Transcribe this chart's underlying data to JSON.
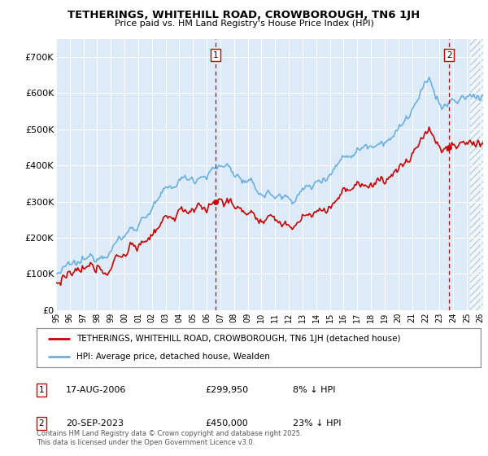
{
  "title": "TETHERINGS, WHITEHILL ROAD, CROWBOROUGH, TN6 1JH",
  "subtitle": "Price paid vs. HM Land Registry's House Price Index (HPI)",
  "ylabel_ticks": [
    "£0",
    "£100K",
    "£200K",
    "£300K",
    "£400K",
    "£500K",
    "£600K",
    "£700K"
  ],
  "ylim": [
    0,
    750000
  ],
  "xlim_start": 1995.0,
  "xlim_end": 2026.2,
  "hpi_color": "#6ab0de",
  "price_color": "#cc0000",
  "sale1_x": 2006.63,
  "sale1_y": 299950,
  "sale2_x": 2023.72,
  "sale2_y": 450000,
  "legend_line1": "TETHERINGS, WHITEHILL ROAD, CROWBOROUGH, TN6 1JH (detached house)",
  "legend_line2": "HPI: Average price, detached house, Wealden",
  "annotation1_date": "17-AUG-2006",
  "annotation1_price": "£299,950",
  "annotation1_pct": "8% ↓ HPI",
  "annotation2_date": "20-SEP-2023",
  "annotation2_price": "£450,000",
  "annotation2_pct": "23% ↓ HPI",
  "footer": "Contains HM Land Registry data © Crown copyright and database right 2025.\nThis data is licensed under the Open Government Licence v3.0.",
  "background_color": "#ddeaf7",
  "hatch_color": "#b8cfe0",
  "future_start": 2025.25
}
